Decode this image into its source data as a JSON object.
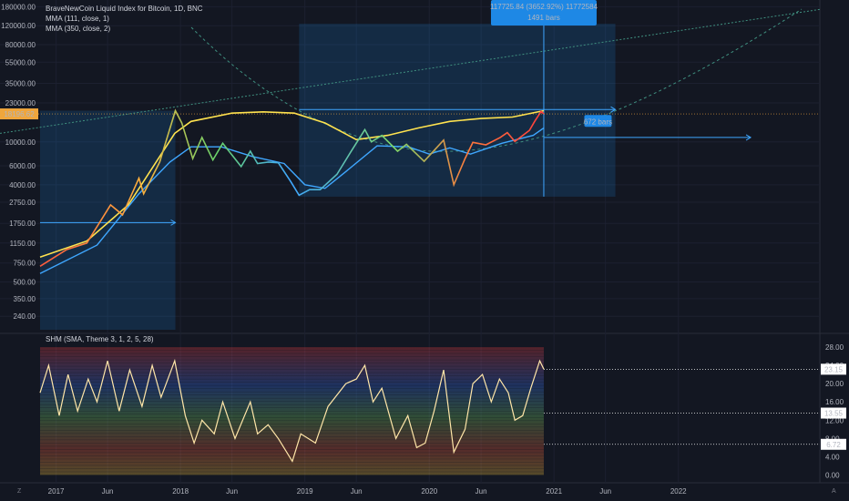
{
  "chart_data": [
    {
      "type": "line",
      "title": "BraveNewCoin Liquid Index for Bitcoin, 1D, BNC",
      "indicators": [
        "MMA (111, close, 1)",
        "MMA (350, close, 2)"
      ],
      "y_scale": "log",
      "y_ticks": [
        "180000.00",
        "120000.00",
        "80000.00",
        "55000.00",
        "35000.00",
        "23000.00",
        "10000.00",
        "6000.00",
        "4000.00",
        "2750.00",
        "1750.00",
        "1150.00",
        "750.00",
        "500.00",
        "350.00",
        "240.00"
      ],
      "y_tick_values": [
        180000,
        120000,
        80000,
        55000,
        35000,
        23000,
        10000,
        6000,
        4000,
        2750,
        1750,
        1150,
        750,
        500,
        350,
        240
      ],
      "price_label": "18196.62",
      "x_ticks": [
        "2017",
        "Jun",
        "2018",
        "Jun",
        "2019",
        "Jun",
        "2020",
        "Jun",
        "2021",
        "Jun",
        "2022"
      ],
      "x_tick_dates": [
        "2017-01-01",
        "2017-06-01",
        "2018-01-01",
        "2018-06-01",
        "2019-01-01",
        "2019-06-01",
        "2020-01-01",
        "2020-06-01",
        "2021-01-01",
        "2021-06-01",
        "2022-01-01"
      ],
      "x_range": [
        "2016-11-15",
        "2023-02-20"
      ],
      "y_range": [
        180,
        200000
      ],
      "series": [
        {
          "values": [
            {
              "x": "2016-11-15",
              "y": 700
            },
            {
              "x": "2017-02-01",
              "y": 1000
            },
            {
              "x": "2017-04-01",
              "y": 1150
            },
            {
              "x": "2017-06-10",
              "y": 2600
            },
            {
              "x": "2017-07-15",
              "y": 2100
            },
            {
              "x": "2017-09-01",
              "y": 4600
            },
            {
              "x": "2017-09-15",
              "y": 3300
            },
            {
              "x": "2017-11-01",
              "y": 6500
            },
            {
              "x": "2017-12-17",
              "y": 19500
            },
            {
              "x": "2018-01-05",
              "y": 15000
            },
            {
              "x": "2018-02-06",
              "y": 7000
            },
            {
              "x": "2018-03-05",
              "y": 11000
            },
            {
              "x": "2018-04-06",
              "y": 6800
            },
            {
              "x": "2018-05-05",
              "y": 9700
            },
            {
              "x": "2018-06-28",
              "y": 5900
            },
            {
              "x": "2018-07-25",
              "y": 8200
            },
            {
              "x": "2018-08-15",
              "y": 6300
            },
            {
              "x": "2018-09-15",
              "y": 6500
            },
            {
              "x": "2018-10-15",
              "y": 6400
            },
            {
              "x": "2018-11-20",
              "y": 4300
            },
            {
              "x": "2018-12-15",
              "y": 3200
            },
            {
              "x": "2019-01-15",
              "y": 3600
            },
            {
              "x": "2019-02-15",
              "y": 3600
            },
            {
              "x": "2019-04-05",
              "y": 5000
            },
            {
              "x": "2019-05-15",
              "y": 8000
            },
            {
              "x": "2019-06-26",
              "y": 13000
            },
            {
              "x": "2019-07-15",
              "y": 10000
            },
            {
              "x": "2019-08-15",
              "y": 11500
            },
            {
              "x": "2019-09-30",
              "y": 8200
            },
            {
              "x": "2019-10-26",
              "y": 9500
            },
            {
              "x": "2019-12-17",
              "y": 6600
            },
            {
              "x": "2020-02-12",
              "y": 10400
            },
            {
              "x": "2020-03-13",
              "y": 4000
            },
            {
              "x": "2020-04-15",
              "y": 7000
            },
            {
              "x": "2020-05-08",
              "y": 9900
            },
            {
              "x": "2020-06-15",
              "y": 9400
            },
            {
              "x": "2020-07-27",
              "y": 11000
            },
            {
              "x": "2020-08-17",
              "y": 12200
            },
            {
              "x": "2020-09-08",
              "y": 10100
            },
            {
              "x": "2020-10-21",
              "y": 12800
            },
            {
              "x": "2020-11-05",
              "y": 15500
            },
            {
              "x": "2020-11-24",
              "y": 19200
            },
            {
              "x": "2020-12-02",
              "y": 18200
            }
          ]
        },
        {
          "name": "MMA (111, close, 1)",
          "color": "#3fa7ff",
          "values": [
            {
              "x": "2016-11-15",
              "y": 600
            },
            {
              "x": "2017-05-01",
              "y": 1100
            },
            {
              "x": "2017-09-01",
              "y": 3300
            },
            {
              "x": "2017-12-01",
              "y": 6500
            },
            {
              "x": "2018-02-01",
              "y": 9000
            },
            {
              "x": "2018-05-01",
              "y": 9000
            },
            {
              "x": "2018-08-01",
              "y": 7300
            },
            {
              "x": "2018-11-01",
              "y": 6300
            },
            {
              "x": "2019-01-01",
              "y": 4000
            },
            {
              "x": "2019-03-01",
              "y": 3700
            },
            {
              "x": "2019-05-01",
              "y": 5300
            },
            {
              "x": "2019-08-01",
              "y": 9200
            },
            {
              "x": "2019-11-01",
              "y": 9000
            },
            {
              "x": "2020-01-01",
              "y": 7700
            },
            {
              "x": "2020-03-01",
              "y": 8800
            },
            {
              "x": "2020-05-01",
              "y": 7700
            },
            {
              "x": "2020-08-01",
              "y": 9700
            },
            {
              "x": "2020-11-01",
              "y": 11500
            },
            {
              "x": "2020-12-02",
              "y": 13500
            }
          ]
        },
        {
          "name": "MMA (350, close, 2)",
          "color": "#ffe34f",
          "values": [
            {
              "x": "2016-11-15",
              "y": 850
            },
            {
              "x": "2017-04-01",
              "y": 1200
            },
            {
              "x": "2017-08-01",
              "y": 2600
            },
            {
              "x": "2017-12-15",
              "y": 12000
            },
            {
              "x": "2018-02-01",
              "y": 15500
            },
            {
              "x": "2018-06-01",
              "y": 18500
            },
            {
              "x": "2018-09-01",
              "y": 19000
            },
            {
              "x": "2018-12-01",
              "y": 18500
            },
            {
              "x": "2019-03-01",
              "y": 15000
            },
            {
              "x": "2019-06-01",
              "y": 10500
            },
            {
              "x": "2019-09-01",
              "y": 11500
            },
            {
              "x": "2019-12-01",
              "y": 13500
            },
            {
              "x": "2020-03-01",
              "y": 15500
            },
            {
              "x": "2020-06-01",
              "y": 16500
            },
            {
              "x": "2020-09-01",
              "y": 17000
            },
            {
              "x": "2020-12-02",
              "y": 19500
            }
          ]
        }
      ],
      "shapes": {
        "range1": {
          "x0": "2016-11-15",
          "x1": "2017-12-17",
          "y0": 180,
          "y1": 19500
        },
        "range2": {
          "x0": "2018-12-15",
          "x1": "2021-06-30",
          "y0": 3100,
          "y1": 125000
        },
        "range2_label": [
          "117725.84 (3652.92%) 11772584",
          "1491 bars"
        ],
        "range3_label": "672 bars",
        "arrows": [
          {
            "x0": "2016-11-15",
            "x1": "2017-12-17",
            "y": 1780
          },
          {
            "x0": "2018-12-15",
            "x1": "2021-06-30",
            "y": 20000
          },
          {
            "x0": "2020-12-02",
            "x1": "2022-08-01",
            "y": 11000
          }
        ],
        "vline": "2020-12-02"
      }
    },
    {
      "type": "line",
      "title": "SHM (SMA, Theme 3, 1, 2, 5, 28)",
      "y_ticks": [
        "28.00",
        "24.00",
        "20.00",
        "16.00",
        "12.00",
        "8.00",
        "4.00",
        "0.00"
      ],
      "y_tick_values": [
        28,
        24,
        20,
        16,
        12,
        8,
        4,
        0
      ],
      "ylim": [
        -0.5,
        29
      ],
      "levels": [
        "23.15",
        "13.55",
        "6.72"
      ],
      "level_values": [
        23.15,
        13.55,
        6.72
      ],
      "series": [
        {
          "color": "#ffe6a8",
          "values": [
            {
              "x": "2016-11-15",
              "y": 18
            },
            {
              "x": "2016-12-10",
              "y": 24
            },
            {
              "x": "2017-01-10",
              "y": 13
            },
            {
              "x": "2017-02-05",
              "y": 22
            },
            {
              "x": "2017-03-05",
              "y": 14
            },
            {
              "x": "2017-04-05",
              "y": 21
            },
            {
              "x": "2017-05-01",
              "y": 16
            },
            {
              "x": "2017-06-01",
              "y": 25
            },
            {
              "x": "2017-07-05",
              "y": 14
            },
            {
              "x": "2017-08-05",
              "y": 23
            },
            {
              "x": "2017-09-10",
              "y": 15
            },
            {
              "x": "2017-10-10",
              "y": 24
            },
            {
              "x": "2017-11-05",
              "y": 17
            },
            {
              "x": "2017-12-15",
              "y": 25
            },
            {
              "x": "2018-01-15",
              "y": 13
            },
            {
              "x": "2018-02-10",
              "y": 7
            },
            {
              "x": "2018-03-05",
              "y": 12
            },
            {
              "x": "2018-04-10",
              "y": 9
            },
            {
              "x": "2018-05-05",
              "y": 16
            },
            {
              "x": "2018-06-10",
              "y": 8
            },
            {
              "x": "2018-07-25",
              "y": 16
            },
            {
              "x": "2018-08-15",
              "y": 9
            },
            {
              "x": "2018-09-15",
              "y": 11
            },
            {
              "x": "2018-10-15",
              "y": 8
            },
            {
              "x": "2018-11-25",
              "y": 3
            },
            {
              "x": "2018-12-20",
              "y": 9
            },
            {
              "x": "2019-02-01",
              "y": 7
            },
            {
              "x": "2019-03-10",
              "y": 15
            },
            {
              "x": "2019-05-01",
              "y": 20
            },
            {
              "x": "2019-06-01",
              "y": 21
            },
            {
              "x": "2019-06-26",
              "y": 24
            },
            {
              "x": "2019-07-20",
              "y": 16
            },
            {
              "x": "2019-08-15",
              "y": 19
            },
            {
              "x": "2019-09-25",
              "y": 8
            },
            {
              "x": "2019-10-30",
              "y": 13
            },
            {
              "x": "2019-11-25",
              "y": 6
            },
            {
              "x": "2019-12-20",
              "y": 7
            },
            {
              "x": "2020-01-15",
              "y": 14
            },
            {
              "x": "2020-02-12",
              "y": 23
            },
            {
              "x": "2020-03-13",
              "y": 5
            },
            {
              "x": "2020-04-15",
              "y": 10
            },
            {
              "x": "2020-05-08",
              "y": 20
            },
            {
              "x": "2020-06-05",
              "y": 22
            },
            {
              "x": "2020-07-01",
              "y": 16
            },
            {
              "x": "2020-07-25",
              "y": 21
            },
            {
              "x": "2020-08-20",
              "y": 18
            },
            {
              "x": "2020-09-08",
              "y": 12
            },
            {
              "x": "2020-10-01",
              "y": 13
            },
            {
              "x": "2020-10-25",
              "y": 19
            },
            {
              "x": "2020-11-20",
              "y": 25
            },
            {
              "x": "2020-12-02",
              "y": 23.15
            }
          ]
        }
      ]
    }
  ],
  "x_ticks_bottom": [
    "2017",
    "Jun",
    "2018",
    "Jun",
    "2019",
    "Jun",
    "2020",
    "Jun",
    "2021",
    "Jun",
    "2022"
  ],
  "corner_left": "Z",
  "corner_right": "A",
  "colors": {
    "bg": "#131722",
    "price_tag": "#f0a63c",
    "level_tag": "#ffffff",
    "highlight": "#1e88e5"
  }
}
